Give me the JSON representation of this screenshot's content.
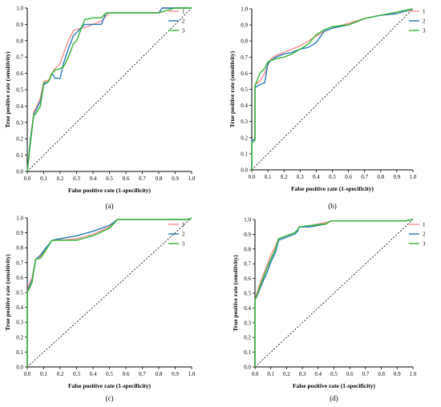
{
  "colors": {
    "series1": "#f28e8e",
    "series2": "#2b7bb9",
    "series3": "#33b533",
    "diagonal": "#000000"
  },
  "chart_data": [
    {
      "type": "line",
      "panel_label": "(a)",
      "xlabel": "False positive rate (1-specificity)",
      "ylabel": "True positive rate (sensitivity)",
      "xlim": [
        0,
        1
      ],
      "ylim": [
        0,
        1
      ],
      "xticks": [
        "0.0",
        "0.1",
        "0.2",
        "0.3",
        "0.4",
        "0.5",
        "0.6",
        "0.7",
        "0.8",
        "0.9",
        "1.0"
      ],
      "yticks": [
        "0.0",
        "0.1",
        "0.2",
        "0.3",
        "0.4",
        "0.5",
        "0.6",
        "0.7",
        "0.8",
        "0.9",
        "1.0"
      ],
      "grid": false,
      "legend_position": "top-right",
      "reference_line": true,
      "series": [
        {
          "name": "1",
          "x": [
            0,
            0.02,
            0.04,
            0.05,
            0.08,
            0.1,
            0.13,
            0.15,
            0.17,
            0.2,
            0.22,
            0.25,
            0.28,
            0.3,
            0.35,
            0.4,
            0.45,
            0.5,
            0.6,
            0.7,
            0.8,
            0.82,
            0.9,
            1.0
          ],
          "y": [
            0,
            0.2,
            0.37,
            0.38,
            0.45,
            0.55,
            0.56,
            0.6,
            0.63,
            0.66,
            0.72,
            0.8,
            0.86,
            0.87,
            0.88,
            0.9,
            0.92,
            0.97,
            0.97,
            0.97,
            0.97,
            1.0,
            1.0,
            1.0
          ]
        },
        {
          "name": "2",
          "x": [
            0,
            0.02,
            0.04,
            0.05,
            0.08,
            0.1,
            0.13,
            0.15,
            0.17,
            0.2,
            0.22,
            0.25,
            0.28,
            0.3,
            0.35,
            0.4,
            0.45,
            0.48,
            0.6,
            0.7,
            0.8,
            0.82,
            0.9,
            1.0
          ],
          "y": [
            0,
            0.2,
            0.35,
            0.37,
            0.43,
            0.53,
            0.55,
            0.6,
            0.57,
            0.57,
            0.66,
            0.75,
            0.83,
            0.85,
            0.9,
            0.9,
            0.9,
            0.97,
            0.97,
            0.97,
            0.97,
            1.0,
            1.0,
            1.0
          ]
        },
        {
          "name": "3",
          "x": [
            0,
            0.02,
            0.04,
            0.05,
            0.08,
            0.1,
            0.13,
            0.15,
            0.17,
            0.2,
            0.22,
            0.25,
            0.28,
            0.3,
            0.35,
            0.4,
            0.45,
            0.48,
            0.6,
            0.7,
            0.8,
            0.83,
            0.9,
            1.0
          ],
          "y": [
            0,
            0.18,
            0.35,
            0.35,
            0.4,
            0.54,
            0.55,
            0.6,
            0.62,
            0.63,
            0.64,
            0.7,
            0.78,
            0.8,
            0.93,
            0.94,
            0.94,
            0.97,
            0.97,
            0.97,
            0.97,
            0.98,
            1.0,
            1.0
          ]
        }
      ]
    },
    {
      "type": "line",
      "panel_label": "(b)",
      "xlabel": "False positive rate (1-specificity)",
      "ylabel": "True positive rate (sensitivity)",
      "xlim": [
        0,
        1
      ],
      "ylim": [
        0,
        1
      ],
      "xticks": [
        "0.0",
        "0.1",
        "0.2",
        "0.3",
        "0.4",
        "0.5",
        "0.6",
        "0.7",
        "0.8",
        "0.9",
        "1.0"
      ],
      "yticks": [
        "0.0",
        "0.1",
        "0.2",
        "0.3",
        "0.4",
        "0.5",
        "0.6",
        "0.7",
        "0.8",
        "0.9",
        "1.0"
      ],
      "grid": false,
      "legend_position": "top-right",
      "reference_line": true,
      "series": [
        {
          "name": "1",
          "x": [
            0,
            0,
            0.02,
            0.02,
            0.05,
            0.08,
            0.1,
            0.12,
            0.15,
            0.2,
            0.25,
            0.3,
            0.35,
            0.4,
            0.45,
            0.5,
            0.6,
            0.7,
            0.8,
            0.9,
            1.0
          ],
          "y": [
            0,
            0.18,
            0.19,
            0.53,
            0.55,
            0.6,
            0.65,
            0.69,
            0.71,
            0.73,
            0.75,
            0.77,
            0.8,
            0.83,
            0.86,
            0.88,
            0.91,
            0.94,
            0.96,
            0.97,
            1.0
          ]
        },
        {
          "name": "2",
          "x": [
            0,
            0,
            0.02,
            0.02,
            0.05,
            0.08,
            0.1,
            0.12,
            0.15,
            0.2,
            0.25,
            0.3,
            0.35,
            0.4,
            0.45,
            0.5,
            0.6,
            0.7,
            0.8,
            0.9,
            1.0
          ],
          "y": [
            0,
            0.18,
            0.19,
            0.51,
            0.53,
            0.54,
            0.66,
            0.68,
            0.7,
            0.72,
            0.73,
            0.75,
            0.76,
            0.79,
            0.86,
            0.88,
            0.9,
            0.94,
            0.96,
            0.97,
            1.0
          ]
        },
        {
          "name": "3",
          "x": [
            0,
            0,
            0.02,
            0.02,
            0.05,
            0.08,
            0.1,
            0.12,
            0.15,
            0.2,
            0.25,
            0.3,
            0.35,
            0.4,
            0.45,
            0.5,
            0.6,
            0.7,
            0.8,
            0.9,
            1.0
          ],
          "y": [
            0,
            0.17,
            0.18,
            0.52,
            0.6,
            0.63,
            0.67,
            0.68,
            0.69,
            0.7,
            0.72,
            0.75,
            0.78,
            0.84,
            0.87,
            0.89,
            0.9,
            0.94,
            0.96,
            0.98,
            1.0
          ]
        }
      ]
    },
    {
      "type": "line",
      "panel_label": "(c)",
      "xlabel": "False positive rate (1-specificity)",
      "ylabel": "True positive rate (sensitivity)",
      "xlim": [
        0,
        1
      ],
      "ylim": [
        0,
        1
      ],
      "xticks": [
        "0.0",
        "0.1",
        "0.2",
        "0.3",
        "0.4",
        "0.5",
        "0.6",
        "0.7",
        "0.8",
        "0.9",
        "1.0"
      ],
      "yticks": [
        "0.0",
        "0.1",
        "0.2",
        "0.3",
        "0.4",
        "0.5",
        "0.6",
        "0.7",
        "0.8",
        "0.9",
        "1.0"
      ],
      "grid": false,
      "legend_position": "top-right",
      "reference_line": true,
      "series": [
        {
          "name": "1",
          "x": [
            0,
            0,
            0.01,
            0.03,
            0.05,
            0.08,
            0.1,
            0.15,
            0.2,
            0.3,
            0.4,
            0.5,
            0.55,
            0.6,
            0.8,
            0.98,
            1.0
          ],
          "y": [
            0,
            0.5,
            0.55,
            0.6,
            0.72,
            0.74,
            0.77,
            0.85,
            0.85,
            0.86,
            0.89,
            0.94,
            0.99,
            0.99,
            0.99,
            0.99,
            1.0
          ]
        },
        {
          "name": "2",
          "x": [
            0,
            0,
            0.01,
            0.03,
            0.05,
            0.08,
            0.1,
            0.15,
            0.2,
            0.3,
            0.4,
            0.5,
            0.55,
            0.6,
            0.8,
            0.98,
            1.0
          ],
          "y": [
            0,
            0.5,
            0.53,
            0.58,
            0.72,
            0.75,
            0.78,
            0.85,
            0.86,
            0.88,
            0.91,
            0.95,
            0.99,
            0.99,
            0.99,
            0.99,
            1.0
          ]
        },
        {
          "name": "3",
          "x": [
            0,
            0,
            0.01,
            0.03,
            0.05,
            0.08,
            0.1,
            0.15,
            0.2,
            0.3,
            0.4,
            0.5,
            0.55,
            0.6,
            0.8,
            0.98,
            1.0
          ],
          "y": [
            0,
            0.5,
            0.52,
            0.57,
            0.72,
            0.73,
            0.76,
            0.85,
            0.85,
            0.85,
            0.88,
            0.93,
            0.99,
            0.99,
            0.99,
            0.99,
            1.0
          ]
        }
      ]
    },
    {
      "type": "line",
      "panel_label": "(d)",
      "xlabel": "False positive rate (1-specificity)",
      "ylabel": "True positive rate (sensitivity)",
      "xlim": [
        0,
        1
      ],
      "ylim": [
        0,
        1
      ],
      "xticks": [
        "0.0",
        "0.1",
        "0.2",
        "0.3",
        "0.4",
        "0.5",
        "0.6",
        "0.7",
        "0.8",
        "0.9",
        "1.0"
      ],
      "yticks": [
        "0.0",
        "0.1",
        "0.2",
        "0.3",
        "0.4",
        "0.5",
        "0.6",
        "0.7",
        "0.8",
        "0.9",
        "1.0"
      ],
      "grid": false,
      "legend_position": "top-right",
      "reference_line": true,
      "series": [
        {
          "name": "1",
          "x": [
            0,
            0,
            0.02,
            0.05,
            0.08,
            0.1,
            0.13,
            0.15,
            0.2,
            0.25,
            0.27,
            0.28,
            0.35,
            0.45,
            0.48,
            0.6,
            0.8,
            0.95,
            1.0
          ],
          "y": [
            0,
            0.45,
            0.53,
            0.62,
            0.7,
            0.76,
            0.82,
            0.87,
            0.89,
            0.91,
            0.93,
            0.95,
            0.96,
            0.98,
            0.99,
            0.99,
            0.99,
            0.99,
            1.0
          ]
        },
        {
          "name": "2",
          "x": [
            0,
            0,
            0.02,
            0.05,
            0.08,
            0.1,
            0.13,
            0.15,
            0.2,
            0.25,
            0.27,
            0.28,
            0.35,
            0.45,
            0.48,
            0.6,
            0.8,
            0.95,
            1.0
          ],
          "y": [
            0,
            0.45,
            0.5,
            0.58,
            0.65,
            0.71,
            0.78,
            0.86,
            0.88,
            0.9,
            0.92,
            0.95,
            0.95,
            0.97,
            0.99,
            0.99,
            0.99,
            0.99,
            1.0
          ]
        },
        {
          "name": "3",
          "x": [
            0,
            0,
            0.02,
            0.05,
            0.08,
            0.1,
            0.13,
            0.15,
            0.2,
            0.25,
            0.27,
            0.28,
            0.35,
            0.45,
            0.48,
            0.6,
            0.8,
            0.95,
            1.0
          ],
          "y": [
            0,
            0.45,
            0.51,
            0.6,
            0.68,
            0.73,
            0.8,
            0.87,
            0.89,
            0.91,
            0.93,
            0.95,
            0.96,
            0.97,
            0.99,
            0.99,
            0.99,
            0.99,
            1.0
          ]
        }
      ]
    }
  ]
}
